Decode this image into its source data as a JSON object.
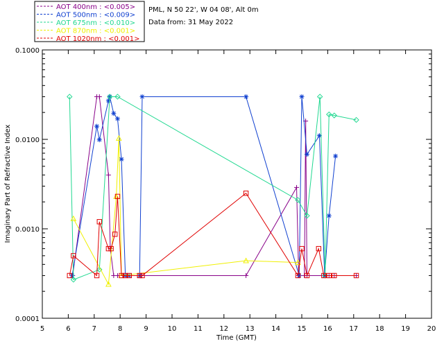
{
  "chart_data": {
    "type": "scatter",
    "title": "",
    "info_lines": [
      "PML, N 50 22', W 04 08', Alt 0m",
      "Data from: 31 May 2022"
    ],
    "xlabel": "Time (GMT)",
    "ylabel": "Imaginary Part of Refractive Index",
    "xlim": [
      5,
      20
    ],
    "ylim": [
      0.0001,
      0.1
    ],
    "yscale": "log",
    "x_ticks": [
      5,
      6,
      7,
      8,
      9,
      10,
      11,
      12,
      13,
      14,
      15,
      16,
      17,
      18,
      19,
      20
    ],
    "y_ticks": [
      {
        "value": 0.0001,
        "label": "0.0001"
      },
      {
        "value": 0.001,
        "label": "0.0010"
      },
      {
        "value": 0.01,
        "label": "0.0100"
      },
      {
        "value": 0.1,
        "label": "0.1000"
      }
    ],
    "grid": false,
    "legend_position": "top-left-outside",
    "series": [
      {
        "name": "AOT  400nm : <0.005>",
        "color": "#880088",
        "marker": "plus",
        "connect": true,
        "points": [
          [
            6.17,
            0.0003
          ],
          [
            7.1,
            0.03
          ],
          [
            7.2,
            0.03
          ],
          [
            7.55,
            0.004
          ],
          [
            7.62,
            0.0006
          ],
          [
            7.75,
            0.0003
          ],
          [
            7.9,
            0.0003
          ],
          [
            8.1,
            0.0003
          ],
          [
            8.25,
            0.0003
          ],
          [
            8.8,
            0.0003
          ],
          [
            12.85,
            0.0003
          ],
          [
            14.8,
            0.0029
          ],
          [
            14.88,
            0.0003
          ],
          [
            15.1,
            0.0003
          ],
          [
            15.15,
            0.016
          ],
          [
            15.2,
            0.0003
          ],
          [
            15.85,
            0.0003
          ],
          [
            15.95,
            0.0003
          ],
          [
            16.05,
            0.0003
          ],
          [
            16.25,
            0.0003
          ],
          [
            17.1,
            0.0003
          ]
        ]
      },
      {
        "name": "AOT  500nm : <0.009>",
        "color": "#1040d0",
        "marker": "star",
        "connect": true,
        "points": [
          [
            6.15,
            0.0003
          ],
          [
            7.1,
            0.014
          ],
          [
            7.2,
            0.0099
          ],
          [
            7.55,
            0.027
          ],
          [
            7.6,
            0.03
          ],
          [
            7.75,
            0.0195
          ],
          [
            7.9,
            0.017
          ],
          [
            8.05,
            0.006
          ],
          [
            8.2,
            0.0003
          ],
          [
            8.35,
            0.0003
          ],
          [
            8.75,
            0.0003
          ],
          [
            8.85,
            0.03
          ],
          [
            12.85,
            0.03
          ],
          [
            14.9,
            0.0003
          ],
          [
            15.0,
            0.03
          ],
          [
            15.2,
            0.0068
          ],
          [
            15.68,
            0.011
          ],
          [
            15.88,
            0.0003
          ],
          [
            16.05,
            0.0014
          ],
          [
            16.3,
            0.0065
          ]
        ]
      },
      {
        "name": "AOT  675nm : <0.010>",
        "color": "#20d890",
        "marker": "diamond",
        "connect": true,
        "points": [
          [
            6.05,
            0.03
          ],
          [
            6.2,
            0.00027
          ],
          [
            7.2,
            0.00035
          ],
          [
            7.6,
            0.03
          ],
          [
            7.9,
            0.03
          ],
          [
            14.85,
            0.0021
          ],
          [
            15.2,
            0.0014
          ],
          [
            15.7,
            0.03
          ],
          [
            15.9,
            0.0003
          ],
          [
            16.05,
            0.019
          ],
          [
            16.25,
            0.0185
          ],
          [
            17.1,
            0.0165
          ]
        ]
      },
      {
        "name": "AOT  870nm : <0.001>",
        "color": "#f0f000",
        "marker": "triangle",
        "connect": true,
        "points": [
          [
            6.2,
            0.0013
          ],
          [
            7.55,
            0.00024
          ],
          [
            7.85,
            0.0023
          ],
          [
            7.95,
            0.0103
          ],
          [
            8.05,
            0.0003
          ],
          [
            12.85,
            0.00044
          ],
          [
            14.85,
            0.00042
          ]
        ]
      },
      {
        "name": "AOT 1020nm : <0.001>",
        "color": "#e00000",
        "marker": "square",
        "connect": true,
        "points": [
          [
            6.05,
            0.0003
          ],
          [
            6.2,
            0.0005
          ],
          [
            7.1,
            0.0003
          ],
          [
            7.2,
            0.0012
          ],
          [
            7.55,
            0.0006
          ],
          [
            7.65,
            0.0006
          ],
          [
            7.8,
            0.00087
          ],
          [
            7.9,
            0.0023
          ],
          [
            8.05,
            0.0003
          ],
          [
            8.2,
            0.0003
          ],
          [
            8.35,
            0.0003
          ],
          [
            8.75,
            0.0003
          ],
          [
            8.85,
            0.0003
          ],
          [
            12.85,
            0.0025
          ],
          [
            14.85,
            0.0003
          ],
          [
            15.0,
            0.0006
          ],
          [
            15.2,
            0.0003
          ],
          [
            15.65,
            0.0006
          ],
          [
            15.85,
            0.0003
          ],
          [
            16.05,
            0.0003
          ],
          [
            16.25,
            0.0003
          ],
          [
            17.1,
            0.0003
          ]
        ]
      }
    ]
  }
}
